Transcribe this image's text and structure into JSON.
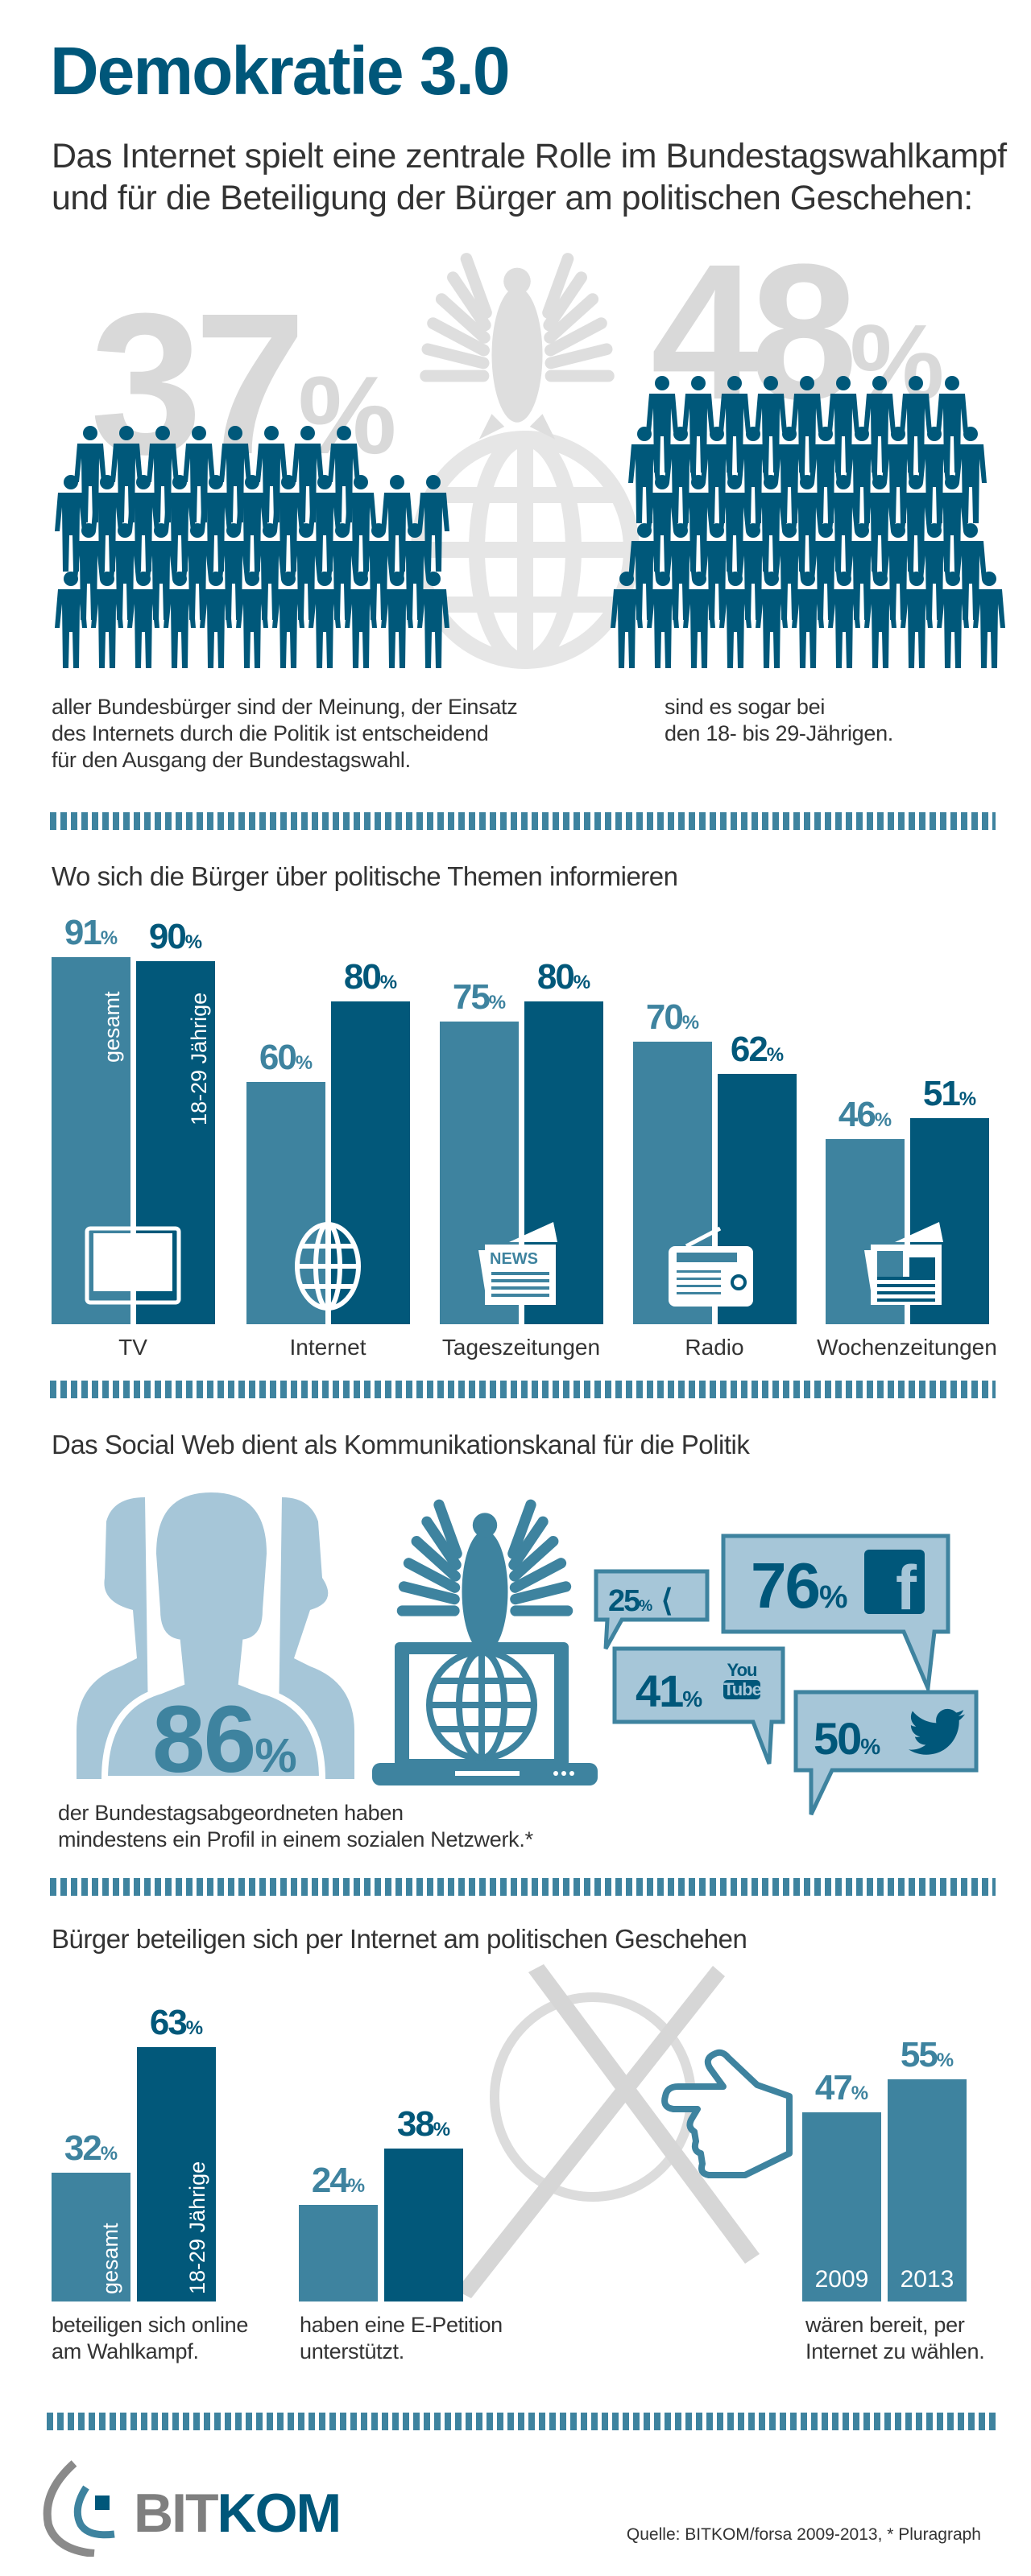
{
  "title": "Demokratie 3.0",
  "subtitle": [
    "Das Internet spielt eine zentrale Rolle im Bundestagswahlkampf",
    "und für die Beteiligung der Bürger am politischen Geschehen:"
  ],
  "percent_sign": "%",
  "colors": {
    "brand": "#00577a",
    "light_bar": "#3e839f",
    "dark_bar": "#02587a",
    "pale_blue": "#a6c6d8",
    "gray": "#d9d9d9"
  },
  "intro": {
    "all_value": "37",
    "all_caption": [
      "aller Bundesbürger sind der Meinung, der Einsatz",
      "des Internets durch die Politik ist entscheidend",
      "für den Ausgang der Bundestagswahl."
    ],
    "young_value": "48",
    "young_caption": [
      "sind es sogar bei",
      "den 18- bis 29-Jährigen."
    ]
  },
  "media": {
    "heading": "Wo sich die Bürger über politische Themen informieren",
    "series_labels": [
      "gesamt",
      "18-29 Jährige"
    ]
  },
  "social": {
    "heading": "Das Social Web dient als Kommunikationskanal für die Politik",
    "profile_value": "86",
    "caption": [
      "der Bundestagsabgeordneten haben",
      "mindestens ein Profil in einem sozialen Netzwerk.*"
    ],
    "networks": [
      {
        "name": "Xing",
        "icon": "xing-icon",
        "value": "25"
      },
      {
        "name": "Facebook",
        "icon": "facebook-icon",
        "value": "76"
      },
      {
        "name": "YouTube",
        "icon": "youtube-icon",
        "value": "41",
        "logo_text": [
          "You",
          "Tube"
        ]
      },
      {
        "name": "Twitter",
        "icon": "twitter-icon",
        "value": "50"
      }
    ]
  },
  "participation": {
    "heading": "Bürger beteiligen sich per Internet am politischen Geschehen",
    "series_labels": [
      "gesamt",
      "18-29 Jährige"
    ]
  },
  "footer": {
    "logo_text": [
      "BIT",
      "KOM"
    ],
    "source": "Quelle: BITKOM/forsa 2009-2013, * Pluragraph"
  },
  "chart_data": [
    {
      "type": "bar",
      "title": "Wo sich die Bürger über politische Themen informieren",
      "categories": [
        "TV",
        "Internet",
        "Tageszeitungen",
        "Radio",
        "Wochenzeitungen"
      ],
      "icons": [
        "tv-icon",
        "globe-icon",
        "newspaper-icon",
        "radio-icon",
        "weekly-newspaper-icon"
      ],
      "series": [
        {
          "name": "gesamt",
          "values": [
            91,
            60,
            75,
            70,
            46
          ]
        },
        {
          "name": "18-29 Jährige",
          "values": [
            90,
            80,
            80,
            62,
            51
          ]
        }
      ],
      "unit": "%",
      "ylim": [
        0,
        100
      ],
      "grid": false
    },
    {
      "type": "bar",
      "title": "Bürger beteiligen sich per Internet am politischen Geschehen",
      "groups": [
        {
          "caption": [
            "beteiligen sich online",
            "am Wahlkampf."
          ],
          "bars": [
            {
              "label": "gesamt",
              "value": 32
            },
            {
              "label": "18-29 Jährige",
              "value": 63
            }
          ]
        },
        {
          "caption": [
            "haben eine E-Petition",
            "unterstützt."
          ],
          "bars": [
            {
              "label": "gesamt",
              "value": 24
            },
            {
              "label": "18-29 Jährige",
              "value": 38
            }
          ]
        },
        {
          "caption": [
            "wären bereit, per",
            "Internet zu wählen."
          ],
          "bars": [
            {
              "label": "2009",
              "value": 47
            },
            {
              "label": "2013",
              "value": 55
            }
          ]
        }
      ],
      "unit": "%",
      "ylim": [
        0,
        100
      ],
      "grid": false
    }
  ]
}
